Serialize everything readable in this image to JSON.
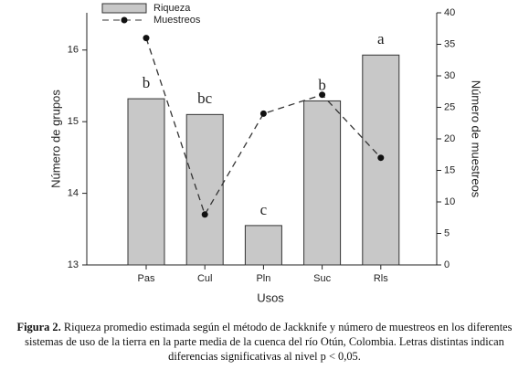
{
  "chart_data": {
    "type": "bar_line",
    "categories": [
      "Pas",
      "Cul",
      "Pln",
      "Suc",
      "Rls"
    ],
    "series": [
      {
        "name": "Riqueza",
        "color": "#c8c8c8",
        "axis": "y",
        "values": [
          15.32,
          15.1,
          13.55,
          15.29,
          15.93
        ]
      },
      {
        "name": "Muestreos",
        "color": "#333333",
        "axis": "y2",
        "values": [
          36,
          8,
          24,
          27,
          17
        ]
      }
    ],
    "letters": [
      "b",
      "bc",
      "c",
      "b",
      "a"
    ],
    "ylim": [
      13,
      16.52
    ],
    "yticks": [
      13,
      14,
      15,
      16
    ],
    "y2lim": [
      0,
      40
    ],
    "y2ticks": [
      0,
      5,
      10,
      15,
      20,
      25,
      30,
      35,
      40
    ],
    "xlabel": "Usos",
    "ylabel": "Número de grupos",
    "y2label": "Número de muestreos"
  },
  "caption": {
    "label": "Figura 2.",
    "text": "Riqueza promedio estimada según el método de Jackknife y número de muestreos en los diferentes sistemas de uso de la tierra en la parte media de la cuenca del río Otún, Colombia. Letras distintas indican diferencias significativas al nivel p < 0,05."
  }
}
